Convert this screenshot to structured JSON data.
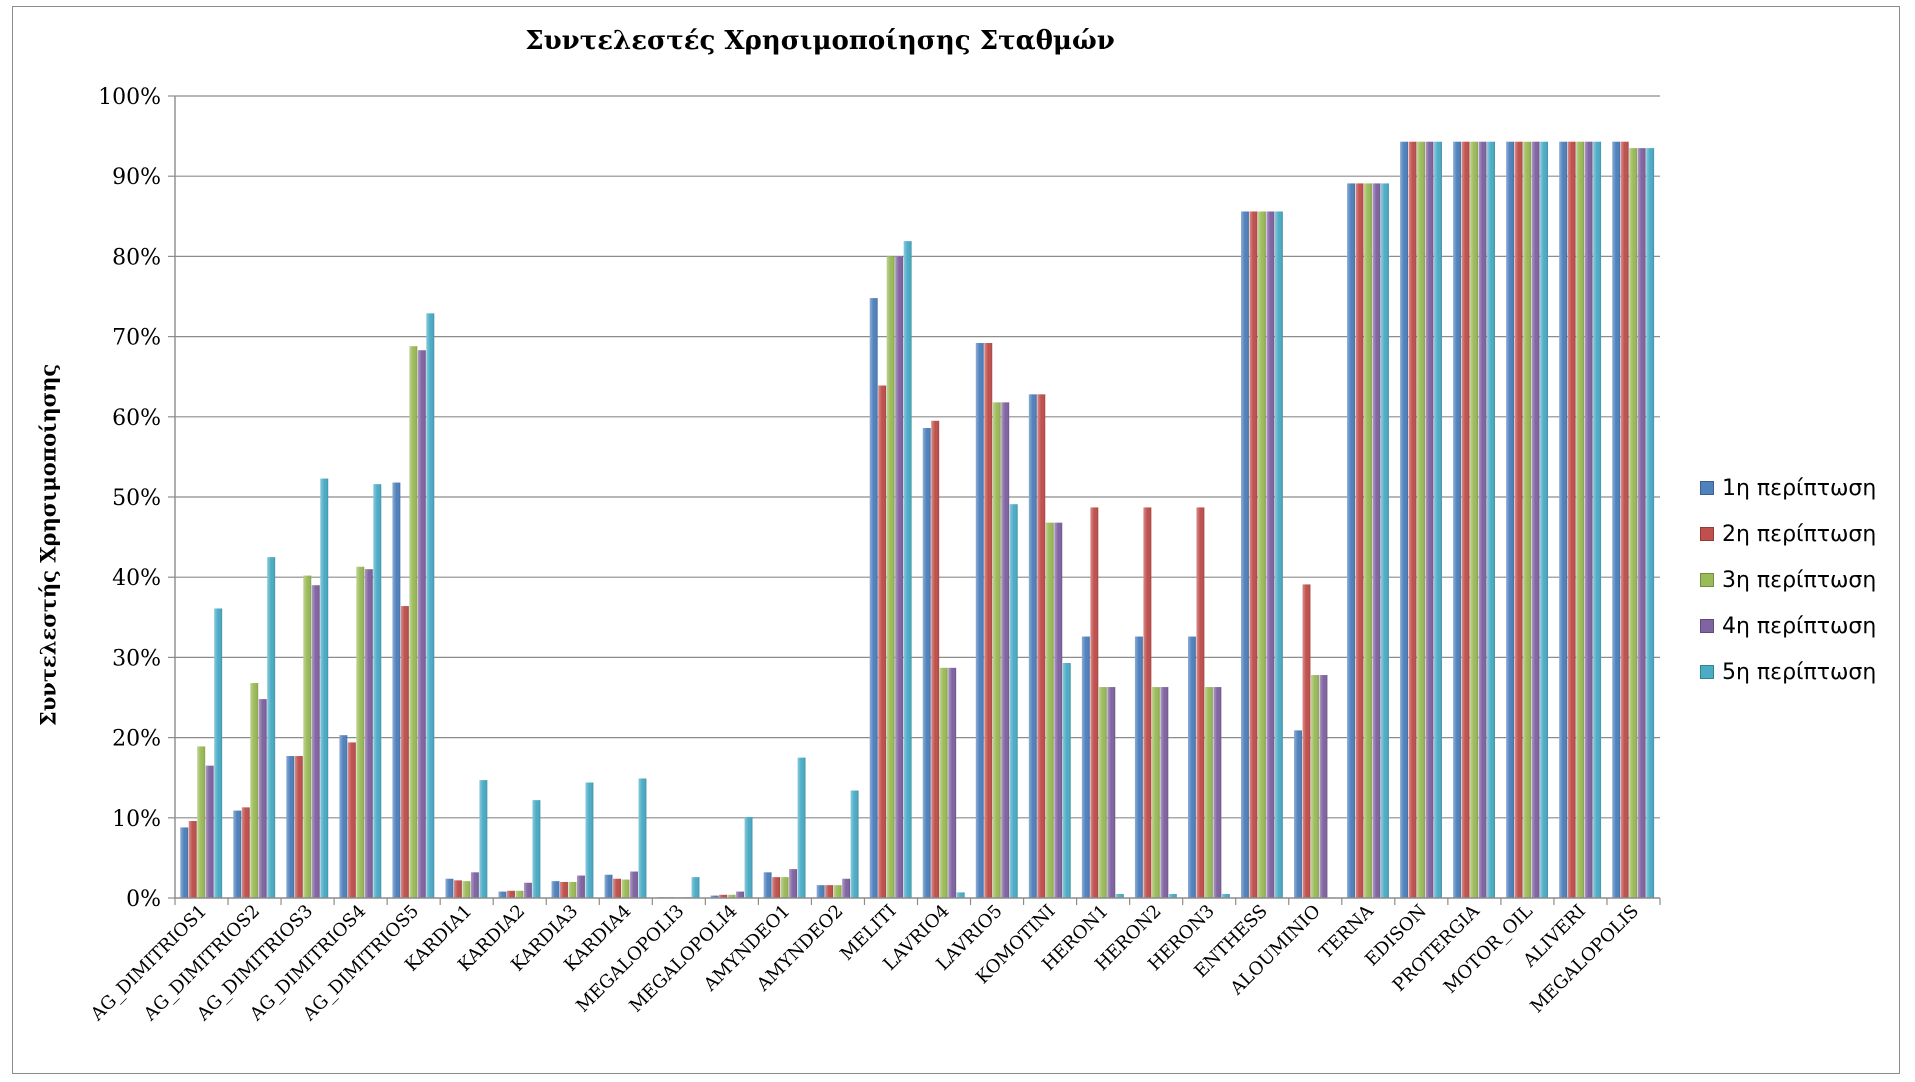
{
  "chart_data": {
    "type": "bar",
    "title": "Συντελεστές Χρησιμοποίησης Σταθμών",
    "xlabel": "",
    "ylabel": "Συντελεστής Χρησιμοποίησης",
    "ylim": [
      0,
      100
    ],
    "y_ticks": [
      "0%",
      "10%",
      "20%",
      "30%",
      "40%",
      "50%",
      "60%",
      "70%",
      "80%",
      "90%",
      "100%"
    ],
    "grid": true,
    "legend_position": "right",
    "categories": [
      "AG_DIMITRIOS1",
      "AG_DIMITRIOS2",
      "AG_DIMITRIOS3",
      "AG_DIMITRIOS4",
      "AG_DIMITRIOS5",
      "KARDIA1",
      "KARDIA2",
      "KARDIA3",
      "KARDIA4",
      "MEGALOPOLI3",
      "MEGALOPOLI4",
      "AMYNDEO1",
      "AMYNDEO2",
      "MELITI",
      "LAVRIO4",
      "LAVRIO5",
      "KOMOTINI",
      "HERON1",
      "HERON2",
      "HERON3",
      "ENTHESS",
      "ALOUMINIO",
      "TERNA",
      "EDISON",
      "PROTERGIA",
      "MOTOR_OIL",
      "ALIVERI",
      "MEGALOPOLIS"
    ],
    "series": [
      {
        "name": "1η περίπτωση",
        "color": "#4f81bd",
        "values": [
          8.8,
          10.9,
          17.7,
          20.3,
          51.8,
          2.4,
          0.8,
          2.1,
          2.9,
          0.1,
          0.3,
          3.2,
          1.6,
          74.8,
          58.6,
          69.2,
          62.8,
          32.6,
          32.6,
          32.6,
          85.6,
          20.9,
          89.1,
          94.3,
          94.3,
          94.3,
          94.3,
          94.3
        ]
      },
      {
        "name": "2η περίπτωση",
        "color": "#c0504d",
        "values": [
          9.6,
          11.3,
          17.7,
          19.4,
          36.4,
          2.2,
          0.9,
          2.0,
          2.4,
          0.1,
          0.4,
          2.6,
          1.6,
          63.9,
          59.5,
          69.2,
          62.8,
          48.7,
          48.7,
          48.7,
          85.6,
          39.1,
          89.1,
          94.3,
          94.3,
          94.3,
          94.3,
          94.3
        ]
      },
      {
        "name": "3η περίπτωση",
        "color": "#9bbb59",
        "values": [
          18.9,
          26.8,
          40.2,
          41.3,
          68.8,
          2.1,
          0.9,
          2.0,
          2.3,
          0.1,
          0.4,
          2.6,
          1.6,
          80.0,
          28.7,
          61.8,
          46.8,
          26.3,
          26.3,
          26.3,
          85.6,
          27.8,
          89.1,
          94.3,
          94.3,
          94.3,
          94.3,
          93.5
        ]
      },
      {
        "name": "4η περίπτωση",
        "color": "#8064a2",
        "values": [
          16.5,
          24.8,
          39.0,
          41.0,
          68.3,
          3.2,
          1.9,
          2.8,
          3.3,
          0.1,
          0.8,
          3.6,
          2.4,
          80.0,
          28.7,
          61.8,
          46.8,
          26.3,
          26.3,
          26.3,
          85.6,
          27.8,
          89.1,
          94.3,
          94.3,
          94.3,
          94.3,
          93.5
        ]
      },
      {
        "name": "5η περίπτωση",
        "color": "#4bacc6",
        "values": [
          36.1,
          42.5,
          52.3,
          51.6,
          72.9,
          14.7,
          12.2,
          14.4,
          14.9,
          2.6,
          10.1,
          17.5,
          13.4,
          81.9,
          0.7,
          49.1,
          29.3,
          0.5,
          0.5,
          0.5,
          85.6,
          0.0,
          89.1,
          94.3,
          94.3,
          94.3,
          94.3,
          93.5
        ]
      }
    ]
  }
}
